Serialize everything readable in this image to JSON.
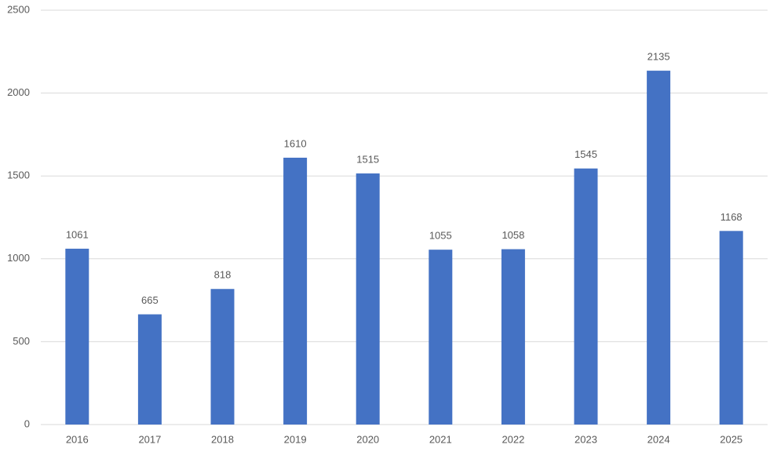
{
  "chart_data": {
    "type": "bar",
    "categories": [
      "2016",
      "2017",
      "2018",
      "2019",
      "2020",
      "2021",
      "2022",
      "2023",
      "2024",
      "2025"
    ],
    "values": [
      1061,
      665,
      818,
      1610,
      1515,
      1055,
      1058,
      1545,
      2135,
      1168
    ],
    "color": "#4472c4",
    "ylim": [
      0,
      2500
    ],
    "yticks": [
      0,
      500,
      1000,
      1500,
      2000,
      2500
    ],
    "grid": true
  }
}
